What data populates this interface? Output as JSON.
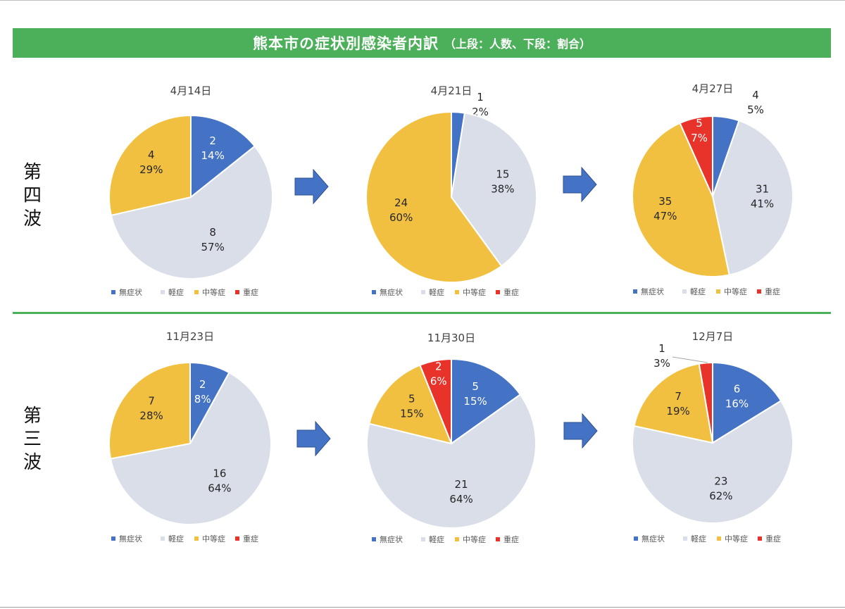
{
  "header": {
    "title": "熊本市の症状別感染者内訳",
    "subtitle": "（上段：人数、下段：割合）"
  },
  "waves": [
    {
      "label_lines": [
        "第",
        "四",
        "波"
      ]
    },
    {
      "label_lines": [
        "第",
        "三",
        "波"
      ]
    }
  ],
  "legend": {
    "items": [
      {
        "name": "無症状",
        "color": "#4472c4"
      },
      {
        "name": "軽症",
        "color": "#d9dee9"
      },
      {
        "name": "中等症",
        "color": "#f2c040"
      },
      {
        "name": "重症",
        "color": "#e8332a"
      }
    ]
  },
  "chart_data": [
    {
      "type": "pie",
      "title": "4月14日",
      "categories": [
        "無症状",
        "軽症",
        "中等症",
        "重症"
      ],
      "values": [
        2,
        8,
        4,
        0
      ],
      "labels": [
        "2\n14%",
        "8\n57%",
        "4\n29%",
        ""
      ],
      "legend": "bottom"
    },
    {
      "type": "pie",
      "title": "4月21日",
      "categories": [
        "無症状",
        "軽症",
        "中等症",
        "重症"
      ],
      "values": [
        1,
        15,
        24,
        0
      ],
      "labels": [
        "1\n2%",
        "15\n38%",
        "24\n60%",
        ""
      ],
      "legend": "bottom"
    },
    {
      "type": "pie",
      "title": "4月27日",
      "categories": [
        "無症状",
        "軽症",
        "中等症",
        "重症"
      ],
      "values": [
        4,
        31,
        35,
        5
      ],
      "labels": [
        "4\n5%",
        "31\n41%",
        "35\n47%",
        "5\n7%"
      ],
      "legend": "bottom"
    },
    {
      "type": "pie",
      "title": "11月23日",
      "categories": [
        "無症状",
        "軽症",
        "中等症",
        "重症"
      ],
      "values": [
        2,
        16,
        7,
        0
      ],
      "labels": [
        "2\n8%",
        "16\n64%",
        "7\n28%",
        ""
      ],
      "legend": "bottom"
    },
    {
      "type": "pie",
      "title": "11月30日",
      "categories": [
        "無症状",
        "軽症",
        "中等症",
        "重症"
      ],
      "values": [
        5,
        21,
        5,
        2
      ],
      "labels": [
        "5\n15%",
        "21\n64%",
        "5\n15%",
        "2\n6%"
      ],
      "legend": "bottom"
    },
    {
      "type": "pie",
      "title": "12月7日",
      "categories": [
        "無症状",
        "軽症",
        "中等症",
        "重症"
      ],
      "values": [
        6,
        23,
        7,
        1
      ],
      "labels": [
        "6\n16%",
        "23\n62%",
        "7\n19%",
        "1\n3%"
      ],
      "legend": "bottom"
    }
  ]
}
